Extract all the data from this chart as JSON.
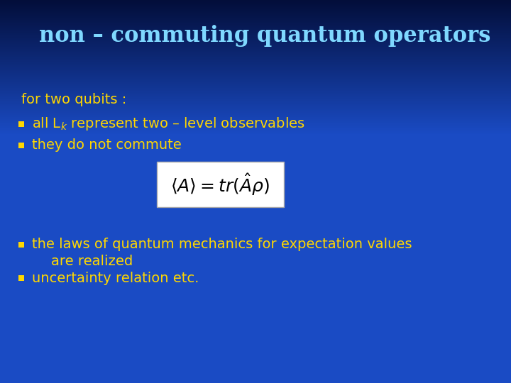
{
  "title": "non – commuting quantum operators",
  "title_color": "#7FD8FF",
  "title_fontsize": 22,
  "bg_color": "#1A4BC4",
  "bg_color_dark": "#030E3A",
  "bullet_color": "#FFD700",
  "text_color": "#FFD700",
  "text_fontsize": 14,
  "intro_text": "for two qubits :",
  "bullet1a": "all L$_k$ represent two – level observables",
  "bullet1b": "they do not commute",
  "formula": "$\\langle A \\rangle = tr(\\hat{A}\\rho)$",
  "formula_box_color": "#FFFFFF",
  "formula_fontsize": 16,
  "bullet2a_line1": "the laws of quantum mechanics for expectation values",
  "bullet2a_line2": "are realized",
  "bullet2b": "uncertainty relation etc."
}
